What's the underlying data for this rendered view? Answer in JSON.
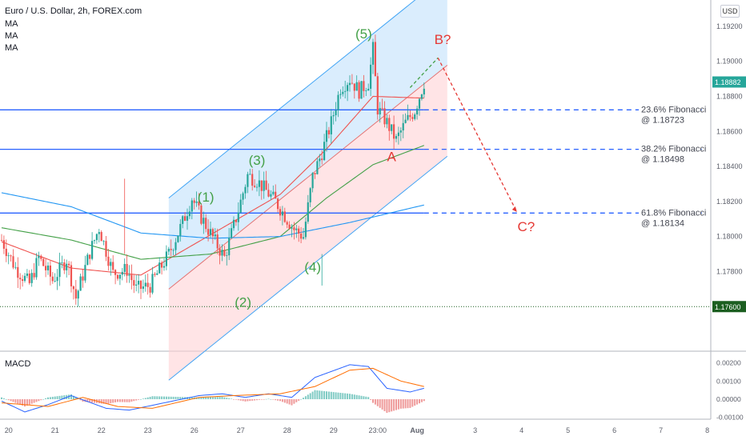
{
  "header": {
    "title": "Euro / U.S. Dollar, 2h, FOREX.com",
    "indicators": [
      "MA",
      "MA",
      "MA"
    ],
    "currency": "USD"
  },
  "macd_label": "MACD",
  "colors": {
    "up": "#26a69a",
    "down": "#ef5350",
    "level": "#2962ff",
    "wave": "#43a047",
    "correction": "#e53935",
    "ma_fast": "#ef5350",
    "ma_mid": "#43a047",
    "ma_slow": "#2196f3",
    "channel_upper": "#bbdefb",
    "channel_lower": "#ffcdd2",
    "macd_line": "#2962ff",
    "signal_line": "#ff6d00"
  },
  "chart_data": [
    {
      "type": "candlestick",
      "symbol": "EURUSD",
      "timeframe": "2h",
      "x_ticks": [
        "20",
        "21",
        "22",
        "23",
        "26",
        "27",
        "28",
        "29",
        "23:00",
        "Aug",
        "3",
        "4",
        "5",
        "6",
        "7",
        "8"
      ],
      "ylim": [
        1.1735,
        1.1935
      ],
      "y_ticks": [
        1.176,
        1.178,
        1.18,
        1.182,
        1.184,
        1.186,
        1.188,
        1.19,
        1.192
      ],
      "y_tick_labels": [
        "1.17600",
        "1.17800",
        "1.18000",
        "1.18200",
        "1.18400",
        "1.18600",
        "1.18800",
        "1.19000",
        "1.19200"
      ],
      "last_price": "1.18882",
      "last_price_value": 1.18882,
      "support_level": "1.17600",
      "support_value": 1.176,
      "ohlc_waypoints": [
        [
          0,
          1.1798
        ],
        [
          6,
          1.1782
        ],
        [
          12,
          1.1773
        ],
        [
          16,
          1.1788
        ],
        [
          22,
          1.1775
        ],
        [
          28,
          1.1787
        ],
        [
          32,
          1.1765
        ],
        [
          38,
          1.1791
        ],
        [
          42,
          1.1805
        ],
        [
          48,
          1.1779
        ],
        [
          54,
          1.1781
        ],
        [
          58,
          1.177
        ],
        [
          64,
          1.1772
        ],
        [
          72,
          1.179
        ],
        [
          78,
          1.1808
        ],
        [
          82,
          1.1822
        ],
        [
          86,
          1.1811
        ],
        [
          92,
          1.1797
        ],
        [
          96,
          1.1788
        ],
        [
          102,
          1.1815
        ],
        [
          106,
          1.1835
        ],
        [
          110,
          1.1832
        ],
        [
          114,
          1.1826
        ],
        [
          118,
          1.182
        ],
        [
          122,
          1.1812
        ],
        [
          126,
          1.1804
        ],
        [
          130,
          1.18
        ],
        [
          134,
          1.1834
        ],
        [
          138,
          1.1848
        ],
        [
          142,
          1.1865
        ],
        [
          146,
          1.1885
        ],
        [
          150,
          1.189
        ],
        [
          154,
          1.1883
        ],
        [
          158,
          1.1888
        ],
        [
          160,
          1.1907
        ],
        [
          162,
          1.1873
        ],
        [
          166,
          1.1865
        ],
        [
          170,
          1.1855
        ],
        [
          174,
          1.1865
        ],
        [
          178,
          1.1872
        ],
        [
          182,
          1.1888
        ]
      ],
      "moving_averages": [
        {
          "name": "MA",
          "color": "#ef5350",
          "points": [
            [
              0,
              1.1797
            ],
            [
              30,
              1.1782
            ],
            [
              60,
              1.1778
            ],
            [
              90,
              1.1801
            ],
            [
              120,
              1.1824
            ],
            [
              140,
              1.185
            ],
            [
              160,
              1.188
            ],
            [
              182,
              1.1879
            ]
          ]
        },
        {
          "name": "MA",
          "color": "#43a047",
          "points": [
            [
              0,
              1.1805
            ],
            [
              30,
              1.1798
            ],
            [
              60,
              1.1787
            ],
            [
              90,
              1.179
            ],
            [
              120,
              1.18
            ],
            [
              140,
              1.1822
            ],
            [
              160,
              1.1841
            ],
            [
              182,
              1.1852
            ]
          ]
        },
        {
          "name": "MA",
          "color": "#2196f3",
          "points": [
            [
              0,
              1.1825
            ],
            [
              30,
              1.1817
            ],
            [
              60,
              1.1802
            ],
            [
              90,
              1.1799
            ],
            [
              120,
              1.18
            ],
            [
              150,
              1.1808
            ],
            [
              182,
              1.1818
            ]
          ]
        }
      ],
      "fibonacci_levels": [
        {
          "label": "23.6% Fibonacci",
          "value_label": "@ 1.18723",
          "value": 1.18723
        },
        {
          "label": "38.2% Fibonacci",
          "value_label": "@ 1.18498",
          "value": 1.18498
        },
        {
          "label": "61.8% Fibonacci",
          "value_label": "@ 1.18134",
          "value": 1.18134
        }
      ],
      "elliott_waves": [
        {
          "label": "(1)",
          "bar": 88,
          "price": 1.182
        },
        {
          "label": "(2)",
          "bar": 104,
          "price": 1.176
        },
        {
          "label": "(3)",
          "bar": 110,
          "price": 1.1841
        },
        {
          "label": "(4)",
          "bar": 134,
          "price": 1.178
        },
        {
          "label": "(5)",
          "bar": 156,
          "price": 1.1913
        }
      ],
      "correction_labels": [
        {
          "label": "A",
          "bar": 168,
          "price": 1.1843
        },
        {
          "label": "B?",
          "bar": 190,
          "price": 1.191
        },
        {
          "label": "C?",
          "bar": 226,
          "price": 1.1803
        }
      ],
      "projection_path": [
        [
          176,
          1.1885
        ],
        [
          188,
          1.1902
        ],
        [
          222,
          1.1814
        ]
      ]
    },
    {
      "type": "histogram",
      "name": "MACD",
      "ylim": [
        -0.0011,
        0.0026
      ],
      "y_ticks": [
        -0.001,
        0.0,
        0.001,
        0.002
      ],
      "y_tick_labels": [
        "-0.00100",
        "0.00000",
        "0.00100",
        "0.00200"
      ],
      "macd_waypoints": [
        [
          0,
          -0.0001
        ],
        [
          10,
          -0.0007
        ],
        [
          20,
          -0.0003
        ],
        [
          30,
          0.0002
        ],
        [
          45,
          -0.0005
        ],
        [
          55,
          -0.0006
        ],
        [
          70,
          -0.0002
        ],
        [
          85,
          0.0002
        ],
        [
          95,
          0.0003
        ],
        [
          105,
          0.0001
        ],
        [
          115,
          0.0003
        ],
        [
          125,
          0.0001
        ],
        [
          135,
          0.0012
        ],
        [
          150,
          0.0019
        ],
        [
          158,
          0.0018
        ],
        [
          166,
          0.0006
        ],
        [
          176,
          0.0004
        ],
        [
          182,
          0.0006
        ]
      ],
      "signal_waypoints": [
        [
          0,
          -0.0002
        ],
        [
          20,
          -0.0004
        ],
        [
          35,
          0.0001
        ],
        [
          50,
          -0.0004
        ],
        [
          65,
          -0.0005
        ],
        [
          85,
          0.0001
        ],
        [
          100,
          0.0002
        ],
        [
          120,
          0.0003
        ],
        [
          135,
          0.0007
        ],
        [
          150,
          0.0016
        ],
        [
          160,
          0.0017
        ],
        [
          172,
          0.001
        ],
        [
          182,
          0.0007
        ]
      ]
    }
  ]
}
